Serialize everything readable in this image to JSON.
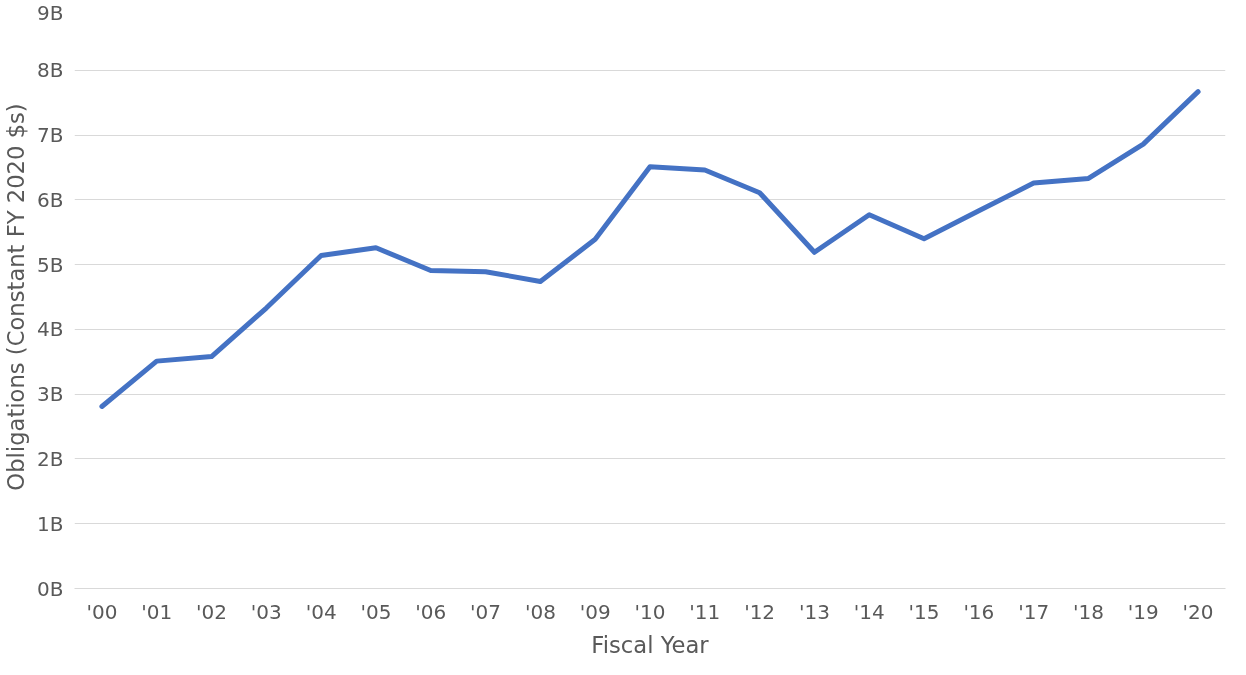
{
  "chart_data": {
    "type": "line",
    "xlabel": "Fiscal Year",
    "ylabel": "Obligations (Constant FY 2020 $s)",
    "categories": [
      "'00",
      "'01",
      "'02",
      "'03",
      "'04",
      "'05",
      "'06",
      "'07",
      "'08",
      "'09",
      "'10",
      "'11",
      "'12",
      "'13",
      "'14",
      "'15",
      "'16",
      "'17",
      "'18",
      "'19",
      "'20"
    ],
    "series": [
      {
        "color": "#4472c4",
        "values": [
          2.81,
          3.51,
          3.58,
          4.33,
          5.14,
          5.26,
          4.91,
          4.89,
          4.74,
          5.39,
          6.51,
          6.46,
          6.11,
          5.19,
          5.77,
          5.4,
          5.83,
          6.26,
          6.33,
          6.86,
          7.67
        ]
      }
    ],
    "ylim": [
      0,
      9
    ],
    "yticks": [
      {
        "value": 0,
        "label": "0B"
      },
      {
        "value": 1,
        "label": "1B"
      },
      {
        "value": 2,
        "label": "2B"
      },
      {
        "value": 3,
        "label": "3B"
      },
      {
        "value": 4,
        "label": "4B"
      },
      {
        "value": 5,
        "label": "5B"
      },
      {
        "value": 6,
        "label": "6B"
      },
      {
        "value": 7,
        "label": "7B"
      },
      {
        "value": 8,
        "label": "8B"
      },
      {
        "value": 9,
        "label": "9B"
      }
    ],
    "grid": "y",
    "marker": "none",
    "line_style": "solid"
  }
}
